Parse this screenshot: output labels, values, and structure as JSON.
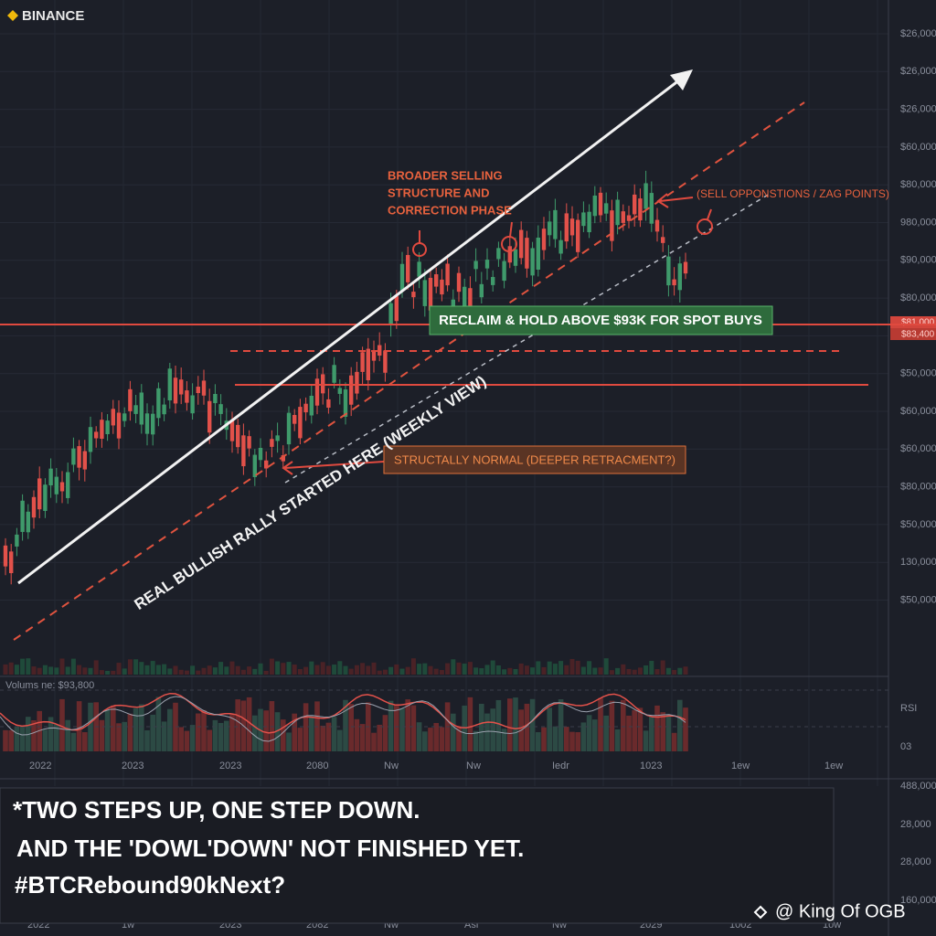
{
  "brand": "BINANCE",
  "price_labels": [
    "$26,000",
    "$26,000",
    "$26,000",
    "$60,000",
    "$80,000",
    "980,000",
    "$90,000",
    "$80,000",
    "$80,000",
    "$50,000",
    "$60,000",
    "$60,000",
    "$80,000",
    "$50,000",
    "130,000",
    "$50,000"
  ],
  "marked_price_labels": [
    "$81.000",
    "$83,400"
  ],
  "lower_labels": [
    "RSI",
    "03",
    "488,000",
    "28,000",
    "28,000",
    "160,000"
  ],
  "time_labels": [
    "2022",
    "2023",
    "2023",
    "2080",
    "Nw",
    "Nw",
    "Iedr",
    "1023",
    "1ew",
    "1ew"
  ],
  "bottom_time_labels": [
    "2022",
    "1w",
    "2023",
    "2082",
    "Nw",
    "Asi",
    "Nw",
    "2029",
    "1002",
    "1ow"
  ],
  "annotations": {
    "correction": [
      "BROADER SELLING",
      "STRUCTURE AND",
      "CORRECTION PHASE"
    ],
    "sell_points": "(SELL OPPONSTIONS / ZAG POINTS)",
    "reclaim": "RECLAIM & HOLD ABOVE $93K FOR SPOT BUYS",
    "rally": "REAL BULLISH RALLY STARTED HERE  (WEEKLY VIEW)",
    "retracement": "STRUCTALLY NORMAL (DEEPER RETRACMENT?)",
    "volume": "Volums ne: $93,800"
  },
  "caption": [
    "*TWO STEPS UP, ONE STEP DOWN.",
    "AND THE 'DOWL'DOWN' NOT FINISHED YET.",
    "#BTCRebound90kNext?"
  ],
  "author": "@ King Of OGB"
}
